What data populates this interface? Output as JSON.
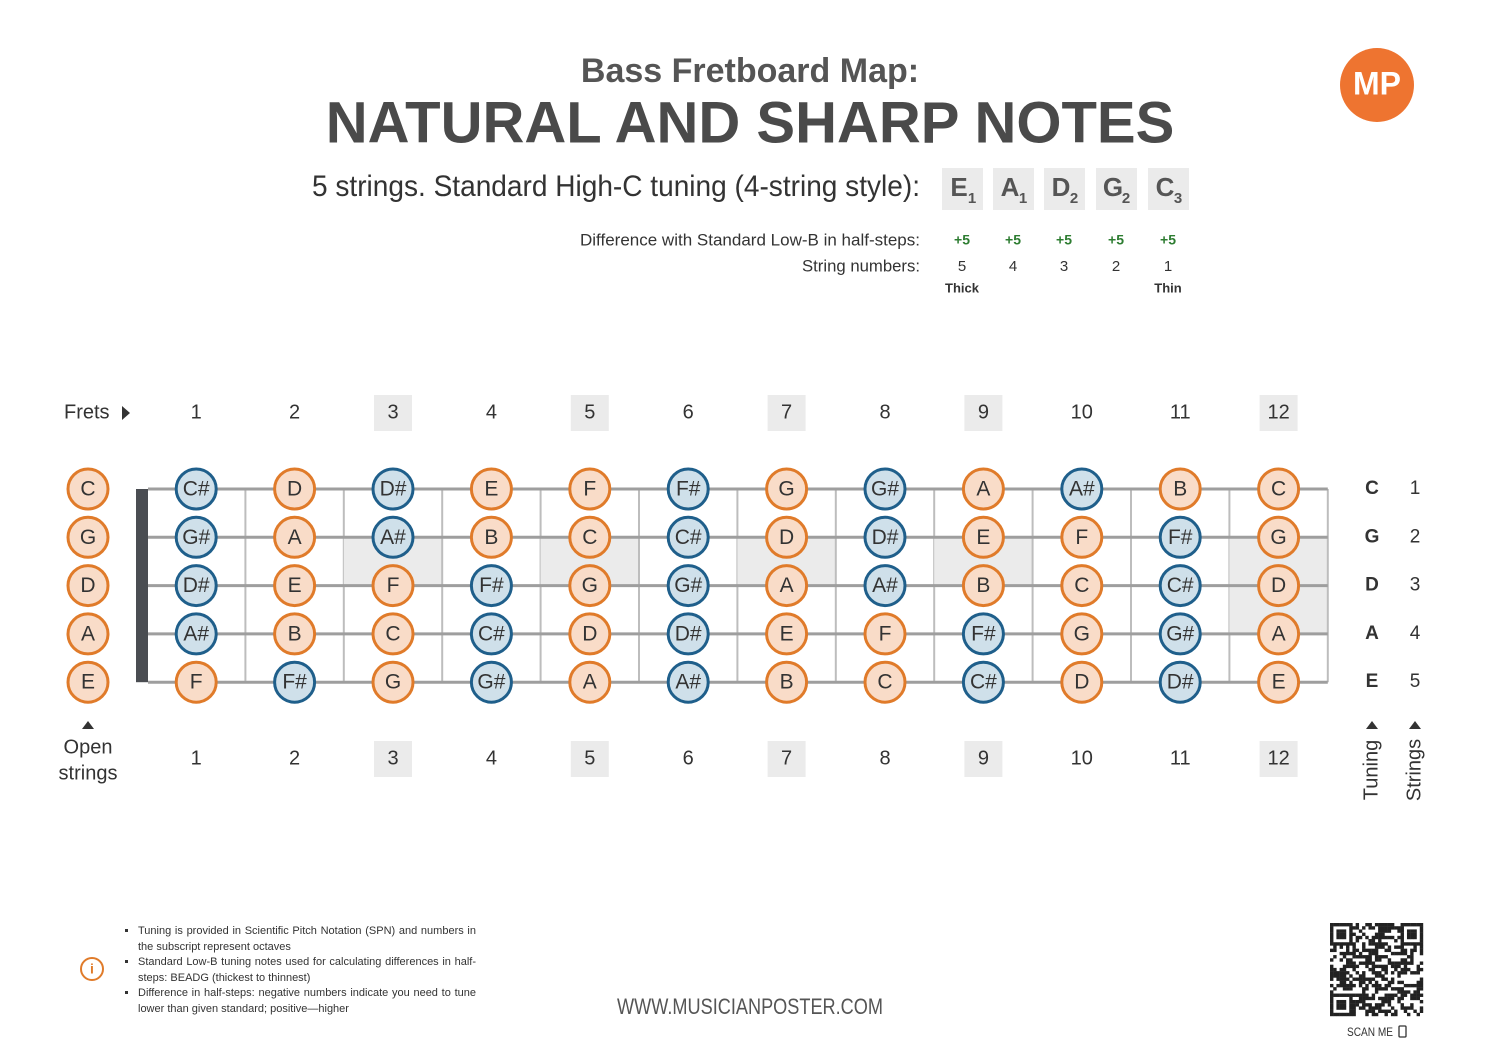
{
  "header": {
    "subtitle": "Bass Fretboard Map:",
    "title": "NATURAL AND SHARP NOTES",
    "tuning_label": "5 strings. Standard High-C tuning (4-string style):",
    "tuning": [
      {
        "note": "E",
        "octave": "1"
      },
      {
        "note": "A",
        "octave": "1"
      },
      {
        "note": "D",
        "octave": "2"
      },
      {
        "note": "G",
        "octave": "2"
      },
      {
        "note": "C",
        "octave": "3"
      }
    ],
    "difference_label": "Difference with Standard Low-B in half-steps:",
    "differences": [
      "+5",
      "+5",
      "+5",
      "+5",
      "+5"
    ],
    "string_numbers_label": "String numbers:",
    "string_numbers": [
      "5",
      "4",
      "3",
      "2",
      "1"
    ],
    "thick": "Thick",
    "thin": "Thin"
  },
  "logo": "MP",
  "fretboard": {
    "frets_label": "Frets",
    "frets": [
      {
        "label": "1",
        "inlay": "none"
      },
      {
        "label": "2",
        "inlay": "none"
      },
      {
        "label": "3",
        "inlay": "single"
      },
      {
        "label": "4",
        "inlay": "none"
      },
      {
        "label": "5",
        "inlay": "single"
      },
      {
        "label": "6",
        "inlay": "none"
      },
      {
        "label": "7",
        "inlay": "single"
      },
      {
        "label": "8",
        "inlay": "none"
      },
      {
        "label": "9",
        "inlay": "single"
      },
      {
        "label": "10",
        "inlay": "none"
      },
      {
        "label": "11",
        "inlay": "none"
      },
      {
        "label": "12",
        "inlay": "double"
      }
    ],
    "open_strings": [
      "C",
      "G",
      "D",
      "A",
      "E"
    ],
    "open_label": [
      "Open",
      "strings"
    ],
    "notes": [
      [
        "C#",
        "D",
        "D#",
        "E",
        "F",
        "F#",
        "G",
        "G#",
        "A",
        "A#",
        "B",
        "C"
      ],
      [
        "G#",
        "A",
        "A#",
        "B",
        "C",
        "C#",
        "D",
        "D#",
        "E",
        "F",
        "F#",
        "G"
      ],
      [
        "D#",
        "E",
        "F",
        "F#",
        "G",
        "G#",
        "A",
        "A#",
        "B",
        "C",
        "C#",
        "D"
      ],
      [
        "A#",
        "B",
        "C",
        "C#",
        "D",
        "D#",
        "E",
        "F",
        "F#",
        "G",
        "G#",
        "A"
      ],
      [
        "F",
        "F#",
        "G",
        "G#",
        "A",
        "A#",
        "B",
        "C",
        "C#",
        "D",
        "D#",
        "E"
      ]
    ],
    "tuning_column": [
      "C",
      "G",
      "D",
      "A",
      "E"
    ],
    "string_column": [
      "1",
      "2",
      "3",
      "4",
      "5"
    ],
    "tuning_axis_label": "Tuning",
    "strings_axis_label": "Strings"
  },
  "footer": {
    "notes": [
      "Tuning is provided in Scientific Pitch Notation (SPN) and numbers in the subscript represent octaves",
      "Standard Low-B tuning notes used for calculating differences in half-steps: BEADG (thickest to thinnest)",
      "Difference in half-steps: negative numbers indicate you need to tune lower than given standard; positive—higher"
    ],
    "website": "WWW.MUSICIANPOSTER.COM",
    "scan": "SCAN ME"
  }
}
